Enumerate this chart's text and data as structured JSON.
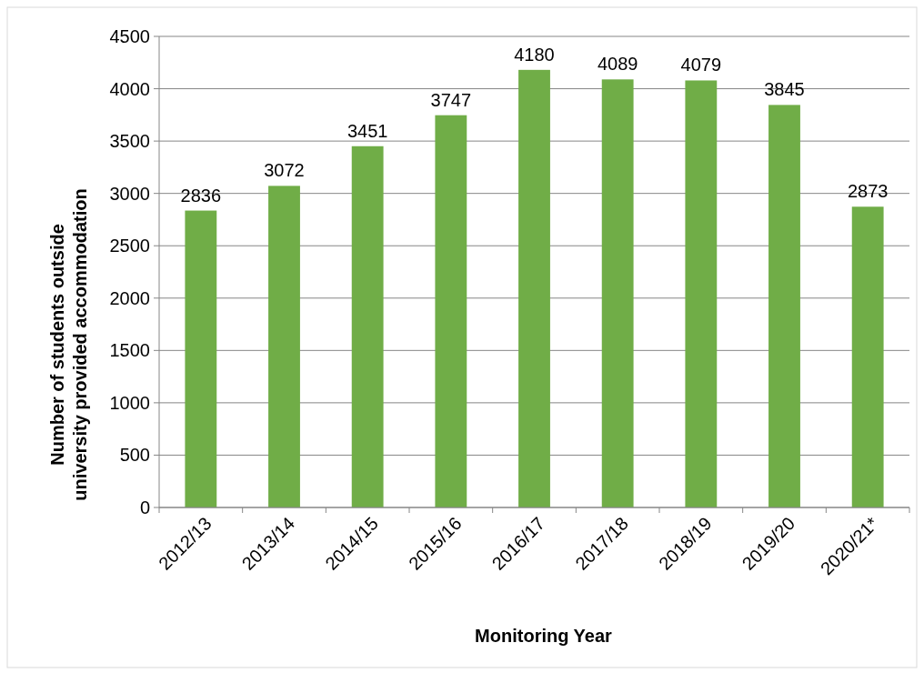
{
  "chart_data": {
    "type": "bar",
    "xlabel": "Monitoring Year",
    "ylabel": "Number of students outside university provided accommodation",
    "categories": [
      "2012/13",
      "2013/14",
      "2014/15",
      "2015/16",
      "2016/17",
      "2017/18",
      "2018/19",
      "2019/20",
      "2020/21*"
    ],
    "values": [
      2836,
      3072,
      3451,
      3747,
      4180,
      4089,
      4079,
      3845,
      2873
    ],
    "color": "#70ad47",
    "ylim": [
      0,
      4500
    ],
    "yticks": [
      0,
      500,
      1000,
      1500,
      2000,
      2500,
      3000,
      3500,
      4000,
      4500
    ],
    "grid": "y",
    "data_labels": true
  }
}
